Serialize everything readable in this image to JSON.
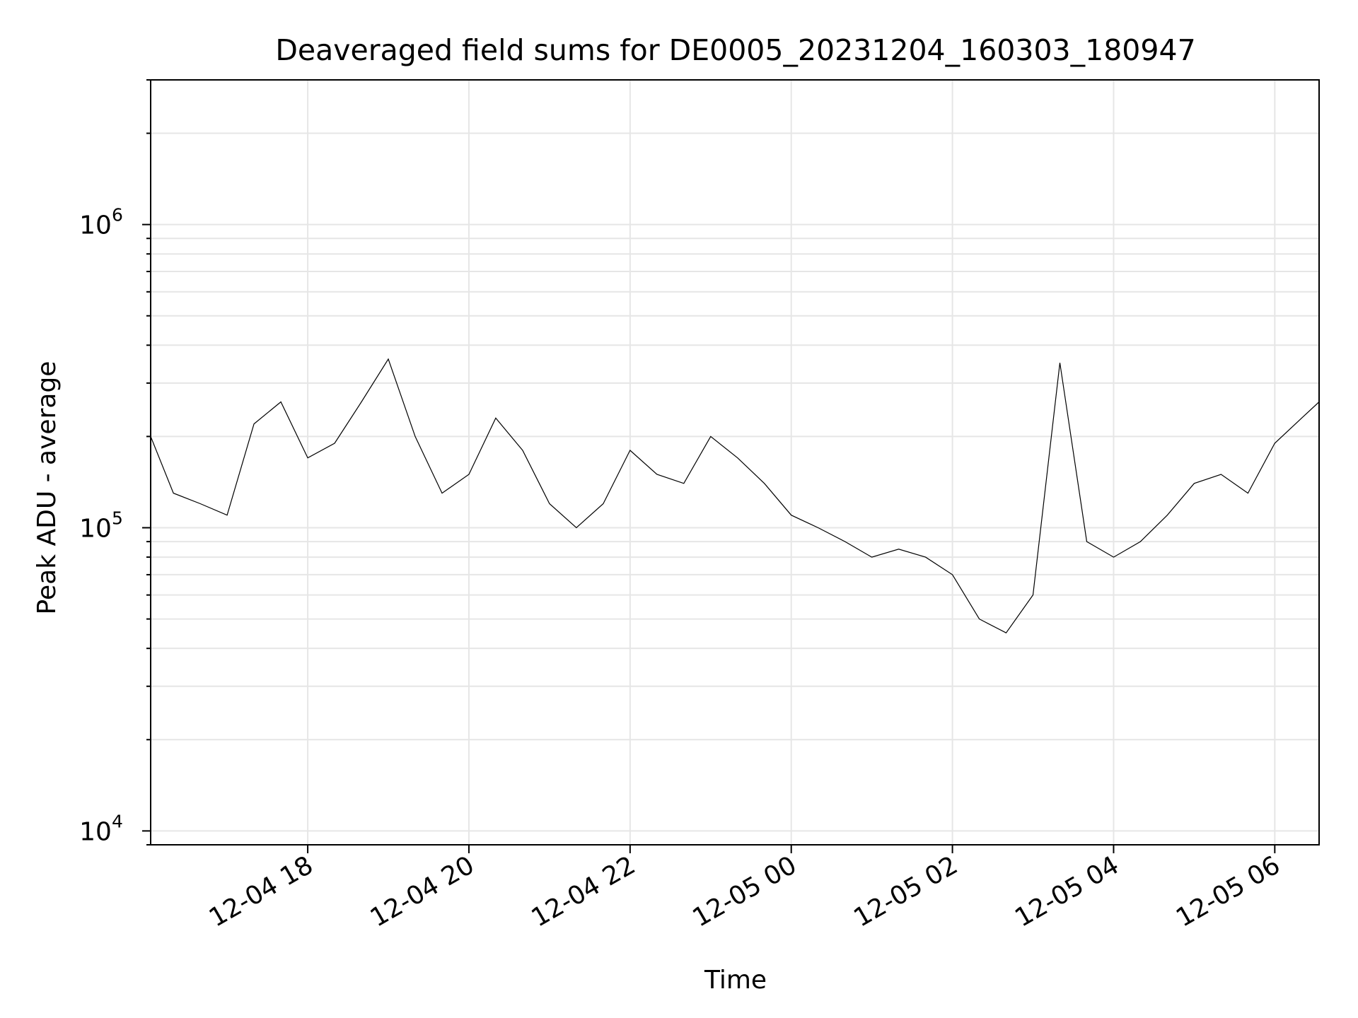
{
  "chart_data": {
    "type": "line",
    "title": "Deaveraged field sums for DE0005_20231204_160303_180947",
    "xlabel": "Time",
    "ylabel": "Peak ADU - average",
    "yscale": "log",
    "grid": true,
    "x_range": [
      "2023-12-04T16:03:03",
      "2023-12-05T06:33:00"
    ],
    "ylim": [
      9000,
      3000000
    ],
    "x_ticks": [
      {
        "value": "2023-12-04T18:00:00",
        "label": "12-04 18"
      },
      {
        "value": "2023-12-04T20:00:00",
        "label": "12-04 20"
      },
      {
        "value": "2023-12-04T22:00:00",
        "label": "12-04 22"
      },
      {
        "value": "2023-12-05T00:00:00",
        "label": "12-05 00"
      },
      {
        "value": "2023-12-05T02:00:00",
        "label": "12-05 02"
      },
      {
        "value": "2023-12-05T04:00:00",
        "label": "12-05 04"
      },
      {
        "value": "2023-12-05T06:00:00",
        "label": "12-05 06"
      }
    ],
    "y_ticks": [
      {
        "value": 10000,
        "base": "10",
        "exp": "4"
      },
      {
        "value": 100000,
        "base": "10",
        "exp": "5"
      },
      {
        "value": 1000000,
        "base": "10",
        "exp": "6"
      }
    ],
    "series": [
      {
        "color": "#000000",
        "x": [
          "2023-12-04T16:03:03",
          "2023-12-04T16:20:00",
          "2023-12-04T16:40:00",
          "2023-12-04T17:00:00",
          "2023-12-04T17:20:00",
          "2023-12-04T17:40:00",
          "2023-12-04T18:00:00",
          "2023-12-04T18:20:00",
          "2023-12-04T18:40:00",
          "2023-12-04T19:00:00",
          "2023-12-04T19:20:00",
          "2023-12-04T19:40:00",
          "2023-12-04T20:00:00",
          "2023-12-04T20:20:00",
          "2023-12-04T20:40:00",
          "2023-12-04T21:00:00",
          "2023-12-04T21:20:00",
          "2023-12-04T21:40:00",
          "2023-12-04T22:00:00",
          "2023-12-04T22:20:00",
          "2023-12-04T22:40:00",
          "2023-12-04T23:00:00",
          "2023-12-04T23:20:00",
          "2023-12-04T23:40:00",
          "2023-12-05T00:00:00",
          "2023-12-05T00:20:00",
          "2023-12-05T00:40:00",
          "2023-12-05T01:00:00",
          "2023-12-05T01:20:00",
          "2023-12-05T01:40:00",
          "2023-12-05T02:00:00",
          "2023-12-05T02:20:00",
          "2023-12-05T02:40:00",
          "2023-12-05T03:00:00",
          "2023-12-05T03:20:00",
          "2023-12-05T03:40:00",
          "2023-12-05T04:00:00",
          "2023-12-05T04:20:00",
          "2023-12-05T04:40:00",
          "2023-12-05T05:00:00",
          "2023-12-05T05:20:00",
          "2023-12-05T05:40:00",
          "2023-12-05T06:00:00",
          "2023-12-05T06:20:00",
          "2023-12-05T06:33:00"
        ],
        "y": [
          200000,
          130000,
          120000,
          110000,
          220000,
          260000,
          170000,
          190000,
          260000,
          360000,
          200000,
          130000,
          150000,
          230000,
          180000,
          120000,
          100000,
          120000,
          180000,
          150000,
          140000,
          200000,
          170000,
          140000,
          110000,
          100000,
          90000,
          80000,
          85000,
          80000,
          70000,
          50000,
          45000,
          60000,
          350000,
          90000,
          80000,
          90000,
          110000,
          140000,
          150000,
          130000,
          190000,
          230000,
          260000
        ]
      }
    ]
  }
}
